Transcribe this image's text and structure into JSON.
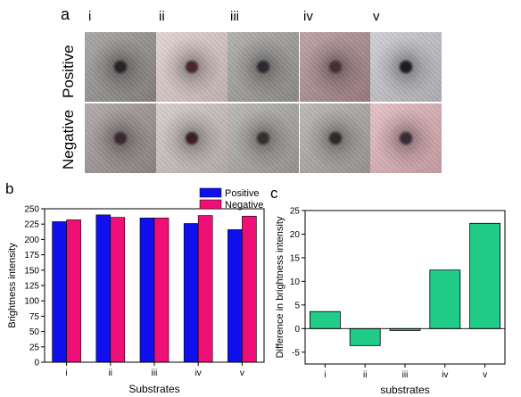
{
  "panel_a": {
    "label": "a",
    "columns": [
      "i",
      "ii",
      "iii",
      "iv",
      "v"
    ],
    "rows": [
      "Positive",
      "Negative"
    ],
    "tile_colors": {
      "Positive": [
        "#8f8c8a",
        "#d8c7c4",
        "#9a9896",
        "#a8868a",
        "#c2c0c6"
      ],
      "Negative": [
        "#9a8f90",
        "#c9bfbd",
        "#a5a3a0",
        "#a9a3a2",
        "#dcadb2"
      ]
    },
    "spot_colors": {
      "Positive": [
        "#2a2426",
        "#4a2630",
        "#2c2a2e",
        "#4a2e36",
        "#1e1c24"
      ],
      "Negative": [
        "#3a2a30",
        "#3a2026",
        "#34302f",
        "#302a2b",
        "#3a2a34"
      ]
    }
  },
  "chart_data": [
    {
      "panel": "b",
      "type": "bar",
      "categories": [
        "i",
        "ii",
        "iii",
        "iv",
        "v"
      ],
      "series": [
        {
          "name": "Positive",
          "color": "#1010ee",
          "values": [
            229,
            240,
            235,
            226,
            216
          ]
        },
        {
          "name": "Negative",
          "color": "#ee1077",
          "values": [
            232,
            236,
            235,
            239,
            238
          ]
        }
      ],
      "title": "",
      "xlabel": "Substrates",
      "ylabel": "Brightness intensity",
      "ylim": [
        0,
        250
      ],
      "yticks": [
        0,
        25,
        50,
        75,
        100,
        125,
        150,
        175,
        200,
        225,
        250
      ],
      "grid": false,
      "legend": "top-right"
    },
    {
      "panel": "c",
      "type": "bar",
      "categories": [
        "i",
        "ii",
        "iii",
        "iv",
        "v"
      ],
      "series": [
        {
          "color": "#20cc88",
          "values": [
            3.6,
            -3.6,
            -0.4,
            12.4,
            22.3
          ]
        }
      ],
      "title": "",
      "xlabel": "substrates",
      "ylabel": "Difference in brightness intensity",
      "ylim": [
        -7.5,
        25
      ],
      "yticks": [
        -5,
        0,
        5,
        10,
        15,
        20,
        25
      ],
      "grid": false,
      "legend": "none"
    }
  ]
}
